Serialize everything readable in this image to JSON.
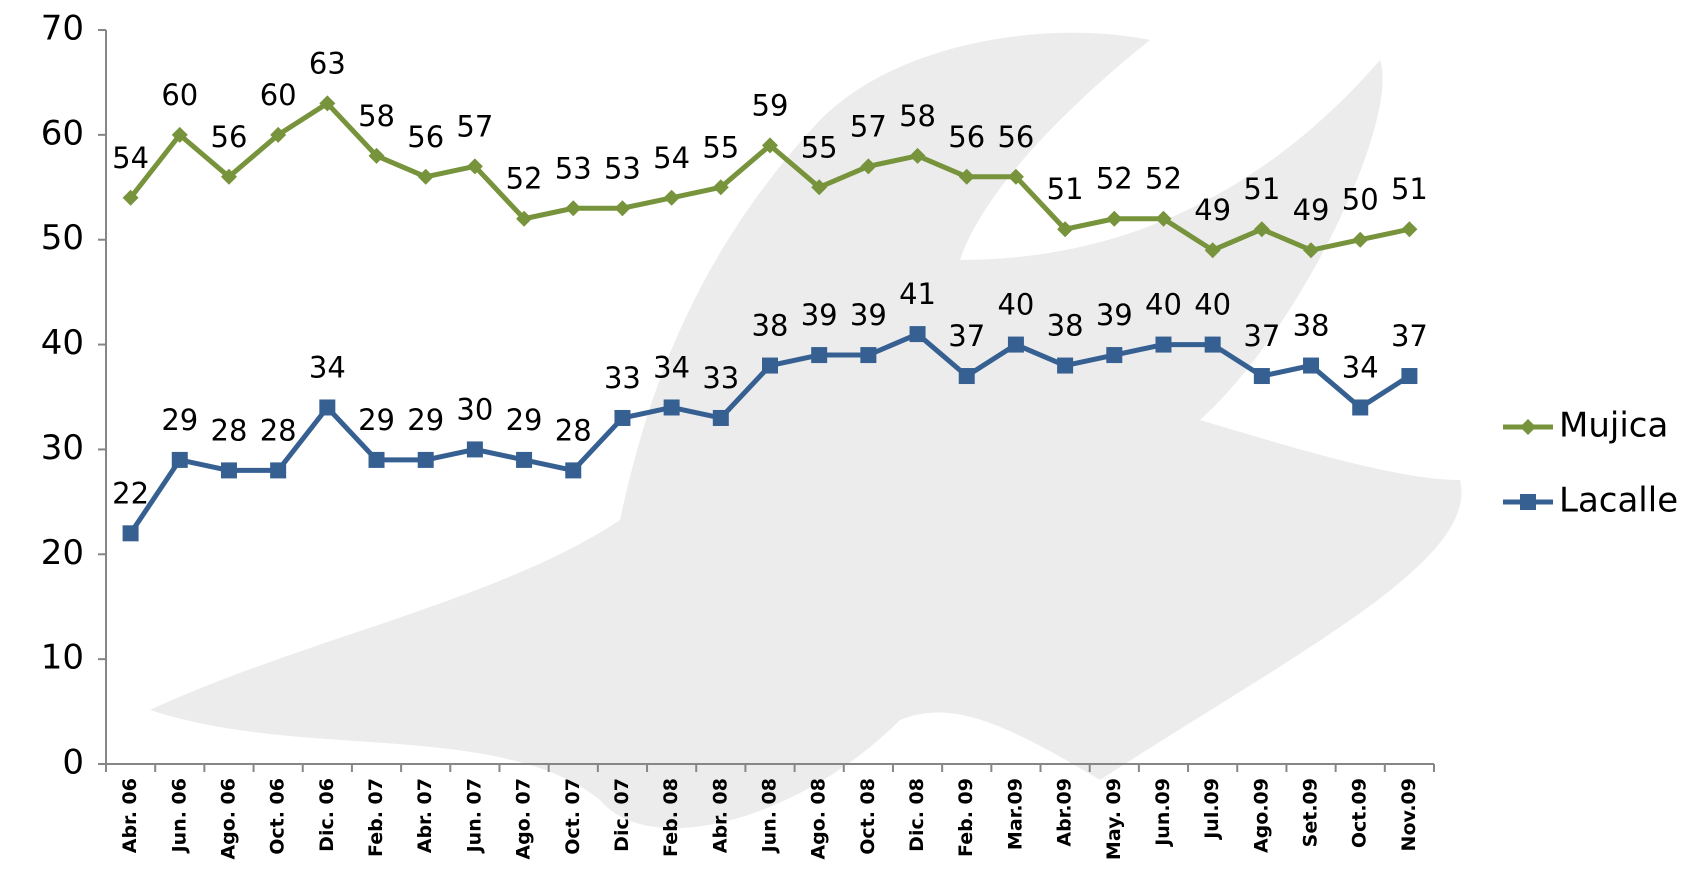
{
  "chart_data": {
    "type": "line",
    "categories": [
      "Abr. 06",
      "Jun. 06",
      "Ago. 06",
      "Oct. 06",
      "Dic. 06",
      "Feb. 07",
      "Abr. 07",
      "Jun. 07",
      "Ago. 07",
      "Oct. 07",
      "Dic. 07",
      "Feb. 08",
      "Abr. 08",
      "Jun. 08",
      "Ago. 08",
      "Oct. 08",
      "Dic. 08",
      "Feb. 09",
      "Mar.09",
      "Abr.09",
      "May. 09",
      "Jun.09",
      "Jul.09",
      "Ago.09",
      "Set.09",
      "Oct.09",
      "Nov.09"
    ],
    "series": [
      {
        "name": "Mujica",
        "color": "#77933c",
        "marker": "diamond",
        "values": [
          54,
          60,
          56,
          60,
          63,
          58,
          56,
          57,
          52,
          53,
          53,
          54,
          55,
          59,
          55,
          57,
          58,
          56,
          56,
          51,
          52,
          52,
          49,
          51,
          49,
          50,
          51
        ]
      },
      {
        "name": "Lacalle",
        "color": "#366092",
        "marker": "square",
        "values": [
          22,
          29,
          28,
          28,
          34,
          29,
          29,
          30,
          29,
          28,
          33,
          34,
          33,
          38,
          39,
          39,
          41,
          37,
          40,
          38,
          39,
          40,
          40,
          37,
          38,
          34,
          37
        ]
      }
    ],
    "ylim": [
      0,
      70
    ],
    "yticks": [
      0,
      10,
      20,
      30,
      40,
      50,
      60,
      70
    ],
    "grid": false,
    "legend": "right"
  }
}
